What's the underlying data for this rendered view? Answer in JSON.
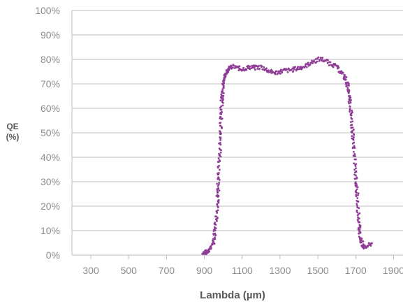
{
  "chart_data": {
    "type": "scatter",
    "title": "",
    "xlabel": "Lambda (µm)",
    "ylabel_lines": [
      "QE",
      "(%)"
    ],
    "xlim": [
      200,
      1950
    ],
    "ylim": [
      0,
      100
    ],
    "x_ticks": [
      300,
      500,
      700,
      900,
      1100,
      1300,
      1500,
      1700,
      1900
    ],
    "y_ticks": [
      0,
      10,
      20,
      30,
      40,
      50,
      60,
      70,
      80,
      90,
      100
    ],
    "y_tick_labels": [
      "0%",
      "10%",
      "20%",
      "30%",
      "40%",
      "50%",
      "60%",
      "70%",
      "80%",
      "90%",
      "100%"
    ],
    "grid": "horizontal",
    "marker_color": "#8e3d96",
    "axis_color": "#bfbfbf",
    "series": [
      {
        "points": [
          [
            890,
            0.5
          ],
          [
            905,
            1
          ],
          [
            915,
            1.5
          ],
          [
            925,
            2
          ],
          [
            935,
            3
          ],
          [
            945,
            5
          ],
          [
            955,
            9
          ],
          [
            962,
            14
          ],
          [
            968,
            20
          ],
          [
            972,
            26
          ],
          [
            976,
            33
          ],
          [
            980,
            40
          ],
          [
            984,
            48
          ],
          [
            988,
            55
          ],
          [
            992,
            62
          ],
          [
            996,
            67
          ],
          [
            1000,
            70
          ],
          [
            1004,
            72
          ],
          [
            1008,
            73
          ],
          [
            1012,
            74
          ],
          [
            1018,
            75
          ],
          [
            1025,
            76
          ],
          [
            1035,
            76.5
          ],
          [
            1050,
            77
          ],
          [
            1075,
            76.5
          ],
          [
            1100,
            76
          ],
          [
            1125,
            76.5
          ],
          [
            1150,
            77
          ],
          [
            1175,
            76.5
          ],
          [
            1200,
            77
          ],
          [
            1225,
            76
          ],
          [
            1250,
            75
          ],
          [
            1275,
            74.5
          ],
          [
            1300,
            75
          ],
          [
            1325,
            75.5
          ],
          [
            1350,
            75.5
          ],
          [
            1375,
            76
          ],
          [
            1400,
            76.5
          ],
          [
            1425,
            77
          ],
          [
            1450,
            78
          ],
          [
            1475,
            79
          ],
          [
            1500,
            80
          ],
          [
            1525,
            80
          ],
          [
            1550,
            79
          ],
          [
            1575,
            78
          ],
          [
            1600,
            77
          ],
          [
            1620,
            75
          ],
          [
            1640,
            73
          ],
          [
            1655,
            70
          ],
          [
            1665,
            66
          ],
          [
            1672,
            62
          ],
          [
            1678,
            56
          ],
          [
            1684,
            50
          ],
          [
            1690,
            44
          ],
          [
            1696,
            37
          ],
          [
            1702,
            30
          ],
          [
            1708,
            24
          ],
          [
            1714,
            17
          ],
          [
            1720,
            11
          ],
          [
            1726,
            7
          ],
          [
            1735,
            4
          ],
          [
            1750,
            3
          ],
          [
            1770,
            4
          ],
          [
            1790,
            5
          ]
        ]
      }
    ]
  }
}
